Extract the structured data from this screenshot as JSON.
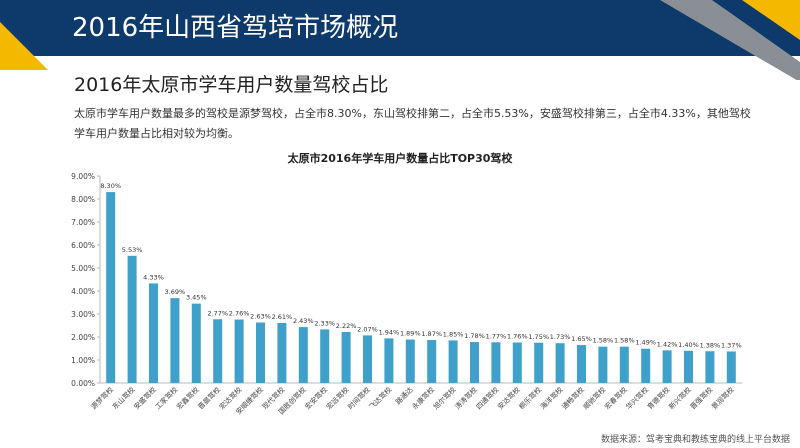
{
  "header": {
    "title": "2016年山西省驾培市场概况"
  },
  "section": {
    "title": "2016年太原市学车用户数量驾校占比",
    "description": "太原市学车用户数量最多的驾校是源梦驾校，占全市8.30%，东山驾校排第二，占全市5.53%，安盛驾校排第三，占全市4.33%，其他驾校学车用户数量占比相对较为均衡。"
  },
  "source": "数据来源：驾考宝典和教练宝典的线上平台数据",
  "colors": {
    "header_bg": "#0d3a6b",
    "accent_yellow": "#f5b800",
    "accent_gray": "#8a8f96",
    "bar": "#3fa1c9",
    "axis": "#bbbbbb",
    "text": "#333333"
  },
  "chart_data": {
    "type": "bar",
    "title": "太原市2016年学车用户数量占比TOP30驾校",
    "xlabel": "",
    "ylabel": "",
    "ylim": [
      0,
      9
    ],
    "yticks": [
      "0.00%",
      "1.00%",
      "2.00%",
      "3.00%",
      "4.00%",
      "5.00%",
      "6.00%",
      "7.00%",
      "8.00%",
      "9.00%"
    ],
    "grid": false,
    "categories": [
      "源梦驾校",
      "东山驾校",
      "安盛驾校",
      "工家驾校",
      "宏鑫驾校",
      "晋晨驾校",
      "宏达驾校",
      "安顺捷驾校",
      "现代驾校",
      "国胜创驾校",
      "宏安驾校",
      "宏远驾校",
      "时间驾校",
      "飞达驾校",
      "路通达",
      "永康驾校",
      "旭尔驾校",
      "涛涛驾校",
      "四通驾校",
      "安达驾校",
      "桐乐驾校",
      "海洋驾校",
      "通畅驾校",
      "顺驰驾校",
      "宏春驾校",
      "华兴驾校",
      "育德驾校",
      "新兴驾校",
      "晋强驾校",
      "景润驾校"
    ],
    "values": [
      8.3,
      5.53,
      4.33,
      3.69,
      3.45,
      2.77,
      2.76,
      2.63,
      2.61,
      2.43,
      2.33,
      2.22,
      2.07,
      1.94,
      1.89,
      1.87,
      1.85,
      1.78,
      1.77,
      1.76,
      1.75,
      1.73,
      1.65,
      1.58,
      1.58,
      1.49,
      1.42,
      1.4,
      1.38,
      1.37
    ],
    "value_labels": [
      "8.30%",
      "5.53%",
      "4.33%",
      "3.69%",
      "3.45%",
      "2.77%",
      "2.76%",
      "2.63%",
      "2.61%",
      "2.43%",
      "2.33%",
      "2.22%",
      "2.07%",
      "1.94%",
      "1.89%",
      "1.87%",
      "1.85%",
      "1.78%",
      "1.77%",
      "1.76%",
      "1.75%",
      "1.73%",
      "1.65%",
      "1.58%",
      "1.58%",
      "1.49%",
      "1.42%",
      "1.40%",
      "1.38%",
      "1.37%"
    ]
  }
}
